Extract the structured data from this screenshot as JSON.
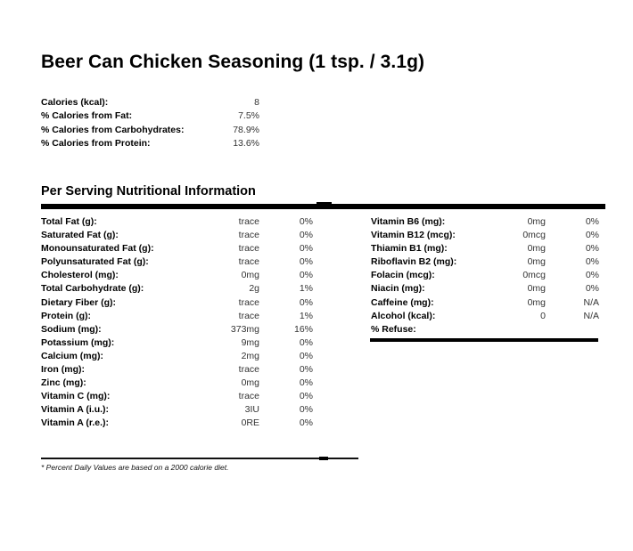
{
  "title": "Beer Can Chicken Seasoning (1 tsp. / 3.1g)",
  "summary": [
    {
      "label": "Calories (kcal):",
      "value": "8"
    },
    {
      "label": "% Calories from Fat:",
      "value": "7.5%"
    },
    {
      "label": "% Calories from Carbohydrates:",
      "value": "78.9%"
    },
    {
      "label": "% Calories from Protein:",
      "value": "13.6%"
    }
  ],
  "section_title": "Per Serving Nutritional Information",
  "left_nutrients": [
    {
      "label": "Total Fat (g):",
      "amount": "trace",
      "pct": "0%"
    },
    {
      "label": "Saturated Fat (g):",
      "amount": "trace",
      "pct": "0%"
    },
    {
      "label": "Monounsaturated Fat (g):",
      "amount": "trace",
      "pct": "0%"
    },
    {
      "label": "Polyunsaturated Fat (g):",
      "amount": "trace",
      "pct": "0%"
    },
    {
      "label": "Cholesterol (mg):",
      "amount": "0mg",
      "pct": "0%"
    },
    {
      "label": "Total Carbohydrate (g):",
      "amount": "2g",
      "pct": "1%"
    },
    {
      "label": "Dietary Fiber (g):",
      "amount": "trace",
      "pct": "0%"
    },
    {
      "label": "Protein (g):",
      "amount": "trace",
      "pct": "1%"
    },
    {
      "label": "Sodium (mg):",
      "amount": "373mg",
      "pct": "16%"
    },
    {
      "label": "Potassium (mg):",
      "amount": "9mg",
      "pct": "0%"
    },
    {
      "label": "Calcium (mg):",
      "amount": "2mg",
      "pct": "0%"
    },
    {
      "label": "Iron (mg):",
      "amount": "trace",
      "pct": "0%"
    },
    {
      "label": "Zinc (mg):",
      "amount": "0mg",
      "pct": "0%"
    },
    {
      "label": "Vitamin C (mg):",
      "amount": "trace",
      "pct": "0%"
    },
    {
      "label": "Vitamin A (i.u.):",
      "amount": "3IU",
      "pct": "0%"
    },
    {
      "label": "Vitamin A (r.e.):",
      "amount": "0RE",
      "pct": "0%"
    }
  ],
  "right_nutrients": [
    {
      "label": "Vitamin B6 (mg):",
      "amount": "0mg",
      "pct": "0%"
    },
    {
      "label": "Vitamin B12 (mcg):",
      "amount": "0mcg",
      "pct": "0%"
    },
    {
      "label": "Thiamin B1 (mg):",
      "amount": "0mg",
      "pct": "0%"
    },
    {
      "label": "Riboflavin B2 (mg):",
      "amount": "0mg",
      "pct": "0%"
    },
    {
      "label": "Folacin (mcg):",
      "amount": "0mcg",
      "pct": "0%"
    },
    {
      "label": "Niacin (mg):",
      "amount": "0mg",
      "pct": "0%"
    },
    {
      "label": "Caffeine (mg):",
      "amount": "0mg",
      "pct": "N/A"
    },
    {
      "label": "Alcohol (kcal):",
      "amount": "0",
      "pct": "N/A"
    },
    {
      "label": "% Refuse:",
      "amount": "",
      "pct": ""
    }
  ],
  "footnote": "* Percent Daily Values are based on a 2000 calorie diet."
}
